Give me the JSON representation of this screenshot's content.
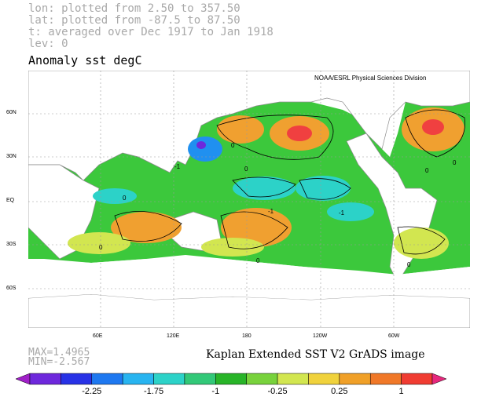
{
  "header": {
    "lon_line": "lon: plotted from 2.50 to 357.50",
    "lat_line": "lat: plotted from -87.5 to 87.50",
    "time_line": "t: averaged over Dec 1917 to Jan 1918",
    "lev_line": "lev: 0"
  },
  "title": "Anomaly sst degC",
  "credit": "NOAA/ESRL Physical Sciences Division",
  "lat_labels": [
    "60N",
    "30N",
    "EQ",
    "30S",
    "60S"
  ],
  "lon_labels": [
    "60E",
    "120E",
    "180",
    "120W",
    "60W"
  ],
  "contour_labels": [
    "0",
    "-1",
    "0",
    "-1",
    "0",
    "0",
    "-1",
    "0",
    "0",
    "0",
    "0"
  ],
  "stats": {
    "max": "MAX=1.4965",
    "min": "MIN=-2.567"
  },
  "source": "Kaplan Extended SST V2 GrADS image",
  "colorbar": {
    "colors": [
      "#a020c8",
      "#6e28dc",
      "#2832e6",
      "#1e78f0",
      "#28b4f0",
      "#2cd2c8",
      "#32c878",
      "#28b428",
      "#78d23c",
      "#d2e650",
      "#f0d23c",
      "#f0a028",
      "#f07828",
      "#f03c32",
      "#e6287d"
    ],
    "labels": [
      "-2.25",
      "-1.75",
      "-1",
      "-0.25",
      "0.25",
      "1"
    ]
  },
  "palette": {
    "ocean_green": "#3cc83c",
    "warm": "#f0a030",
    "hot": "#f04040",
    "cool": "#2cd2c8",
    "cold": "#2090f0",
    "yellow": "#d2e650"
  }
}
